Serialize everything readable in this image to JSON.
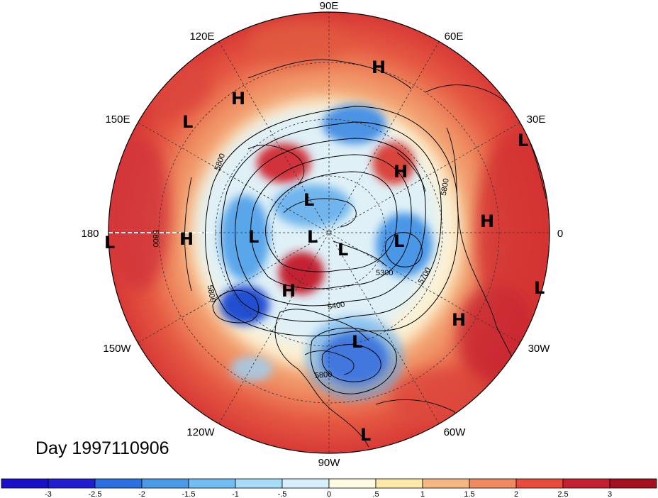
{
  "title": "Day 1997110906",
  "longitude_labels": [
    "90E",
    "60E",
    "30E",
    "0",
    "30W",
    "60W",
    "90W",
    "120W",
    "150W",
    "180",
    "150E",
    "120E"
  ],
  "pressure_marks": [
    {
      "type": "H"
    },
    {
      "type": "H"
    },
    {
      "type": "L"
    },
    {
      "type": "L"
    },
    {
      "type": "H"
    },
    {
      "type": "L"
    },
    {
      "type": "H"
    },
    {
      "type": "L"
    },
    {
      "type": "L"
    },
    {
      "type": "L"
    },
    {
      "type": "L"
    },
    {
      "type": "L"
    },
    {
      "type": "H"
    },
    {
      "type": "H"
    },
    {
      "type": "L"
    },
    {
      "type": "H"
    },
    {
      "type": "L"
    },
    {
      "type": "L"
    }
  ],
  "contour_labels": [
    "5800",
    "5800",
    "5800",
    "5800",
    "5300",
    "5700",
    "5400",
    "5800"
  ],
  "colorbar": {
    "ticks": [
      "-3",
      "-2.5",
      "-2",
      "-1.5",
      "-1",
      "-.5",
      "0",
      ".5",
      "1",
      "1.5",
      "2",
      "2.5",
      "3"
    ],
    "colors": [
      "#1f1fcf",
      "#2b6fe0",
      "#4a9ae8",
      "#72bdf2",
      "#a6dcf8",
      "#d6f0fb",
      "#fffbe0",
      "#fde9a8",
      "#f6b880",
      "#ef8a5e",
      "#e84a3c",
      "#c42030",
      "#a4101e"
    ]
  }
}
